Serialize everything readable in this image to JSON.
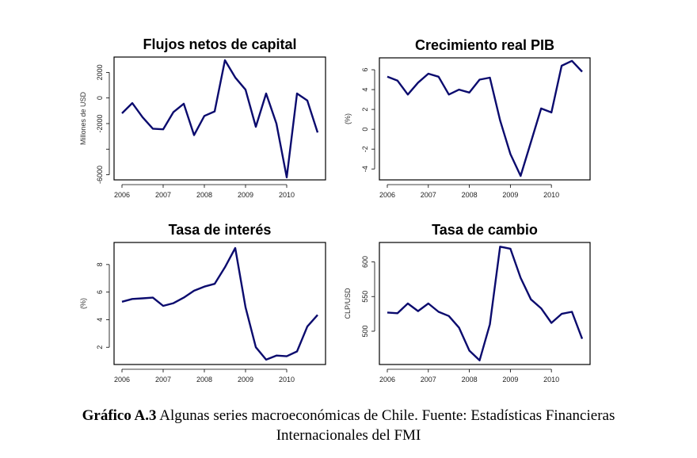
{
  "caption": {
    "label": "Gráfico A.3",
    "text_line1": " Algunas series macroeconómicas de Chile. Fuente: Estadísticas Financieras",
    "text_line2": "Internacionales del FMI"
  },
  "line_color": "#0b0b6e",
  "chart_data": [
    {
      "type": "line",
      "title": "Flujos netos de capital",
      "xlabel": "",
      "ylabel": "Millones de USD",
      "x": [
        2006,
        2006.25,
        2006.5,
        2006.75,
        2007,
        2007.25,
        2007.5,
        2007.75,
        2008,
        2008.25,
        2008.5,
        2008.75,
        2009,
        2009.25,
        2009.5,
        2009.75,
        2010,
        2010.25,
        2010.5,
        2010.75
      ],
      "values": [
        -1200,
        -400,
        -1500,
        -2400,
        -2450,
        -1100,
        -450,
        -2900,
        -1400,
        -1050,
        2950,
        1600,
        650,
        -2250,
        350,
        -2000,
        -6200,
        350,
        -200,
        -2700
      ],
      "ylim": [
        -6400,
        3200
      ],
      "yticks": [
        -6000,
        -4000,
        -2000,
        0,
        2000
      ],
      "ytick_labels": [
        "-6000",
        "",
        "-2000",
        "0",
        "2000"
      ],
      "xticks": [
        2006,
        2007,
        2008,
        2009,
        2010
      ],
      "xtick_labels": [
        "2006",
        "2007",
        "2008",
        "2009",
        "2010"
      ]
    },
    {
      "type": "line",
      "title": "Crecimiento real PIB",
      "xlabel": "",
      "ylabel": "(%)",
      "x": [
        2006,
        2006.25,
        2006.5,
        2006.75,
        2007,
        2007.25,
        2007.5,
        2007.75,
        2008,
        2008.25,
        2008.5,
        2008.75,
        2009,
        2009.25,
        2009.5,
        2009.75,
        2010,
        2010.25,
        2010.5,
        2010.75
      ],
      "values": [
        5.3,
        4.9,
        3.5,
        4.7,
        5.6,
        5.3,
        3.5,
        4.0,
        3.7,
        5.0,
        5.2,
        0.9,
        -2.5,
        -4.7,
        -1.3,
        2.1,
        1.7,
        6.4,
        6.9,
        5.8
      ],
      "ylim": [
        -5.1,
        7.2
      ],
      "yticks": [
        -4,
        -2,
        0,
        2,
        4,
        6
      ],
      "ytick_labels": [
        "-4",
        "-2",
        "0",
        "2",
        "4",
        "6"
      ],
      "xticks": [
        2006,
        2007,
        2008,
        2009,
        2010
      ],
      "xtick_labels": [
        "2006",
        "2007",
        "2008",
        "2009",
        "2010"
      ]
    },
    {
      "type": "line",
      "title": "Tasa de interés",
      "xlabel": "",
      "ylabel": "(%)",
      "x": [
        2006,
        2006.25,
        2006.5,
        2006.75,
        2007,
        2007.25,
        2007.5,
        2007.75,
        2008,
        2008.25,
        2008.5,
        2008.75,
        2009,
        2009.25,
        2009.5,
        2009.75,
        2010,
        2010.25,
        2010.5,
        2010.75
      ],
      "values": [
        5.3,
        5.5,
        5.55,
        5.6,
        5.0,
        5.2,
        5.6,
        6.1,
        6.4,
        6.6,
        7.8,
        9.2,
        4.9,
        2.0,
        1.1,
        1.4,
        1.35,
        1.7,
        3.5,
        4.35
      ],
      "ylim": [
        0.75,
        9.6
      ],
      "yticks": [
        2,
        4,
        6,
        8
      ],
      "ytick_labels": [
        "2",
        "4",
        "6",
        "8"
      ],
      "xticks": [
        2006,
        2007,
        2008,
        2009,
        2010
      ],
      "xtick_labels": [
        "2006",
        "2007",
        "2008",
        "2009",
        "2010"
      ]
    },
    {
      "type": "line",
      "title": "Tasa de cambio",
      "xlabel": "",
      "ylabel": "CLP/USD",
      "x": [
        2006,
        2006.25,
        2006.5,
        2006.75,
        2007,
        2007.25,
        2007.5,
        2007.75,
        2008,
        2008.25,
        2008.5,
        2008.75,
        2009,
        2009.25,
        2009.5,
        2009.75,
        2010,
        2010.25,
        2010.5,
        2010.75
      ],
      "values": [
        527,
        526,
        540,
        529,
        540,
        528,
        522,
        505,
        472,
        458,
        510,
        622,
        619,
        577,
        546,
        533,
        512,
        525,
        528,
        489
      ],
      "ylim": [
        452,
        628
      ],
      "yticks": [
        500,
        550,
        600
      ],
      "ytick_labels": [
        "500",
        "550",
        "600"
      ],
      "xticks": [
        2006,
        2007,
        2008,
        2009,
        2010
      ],
      "xtick_labels": [
        "2006",
        "2007",
        "2008",
        "2009",
        "2010"
      ]
    }
  ]
}
